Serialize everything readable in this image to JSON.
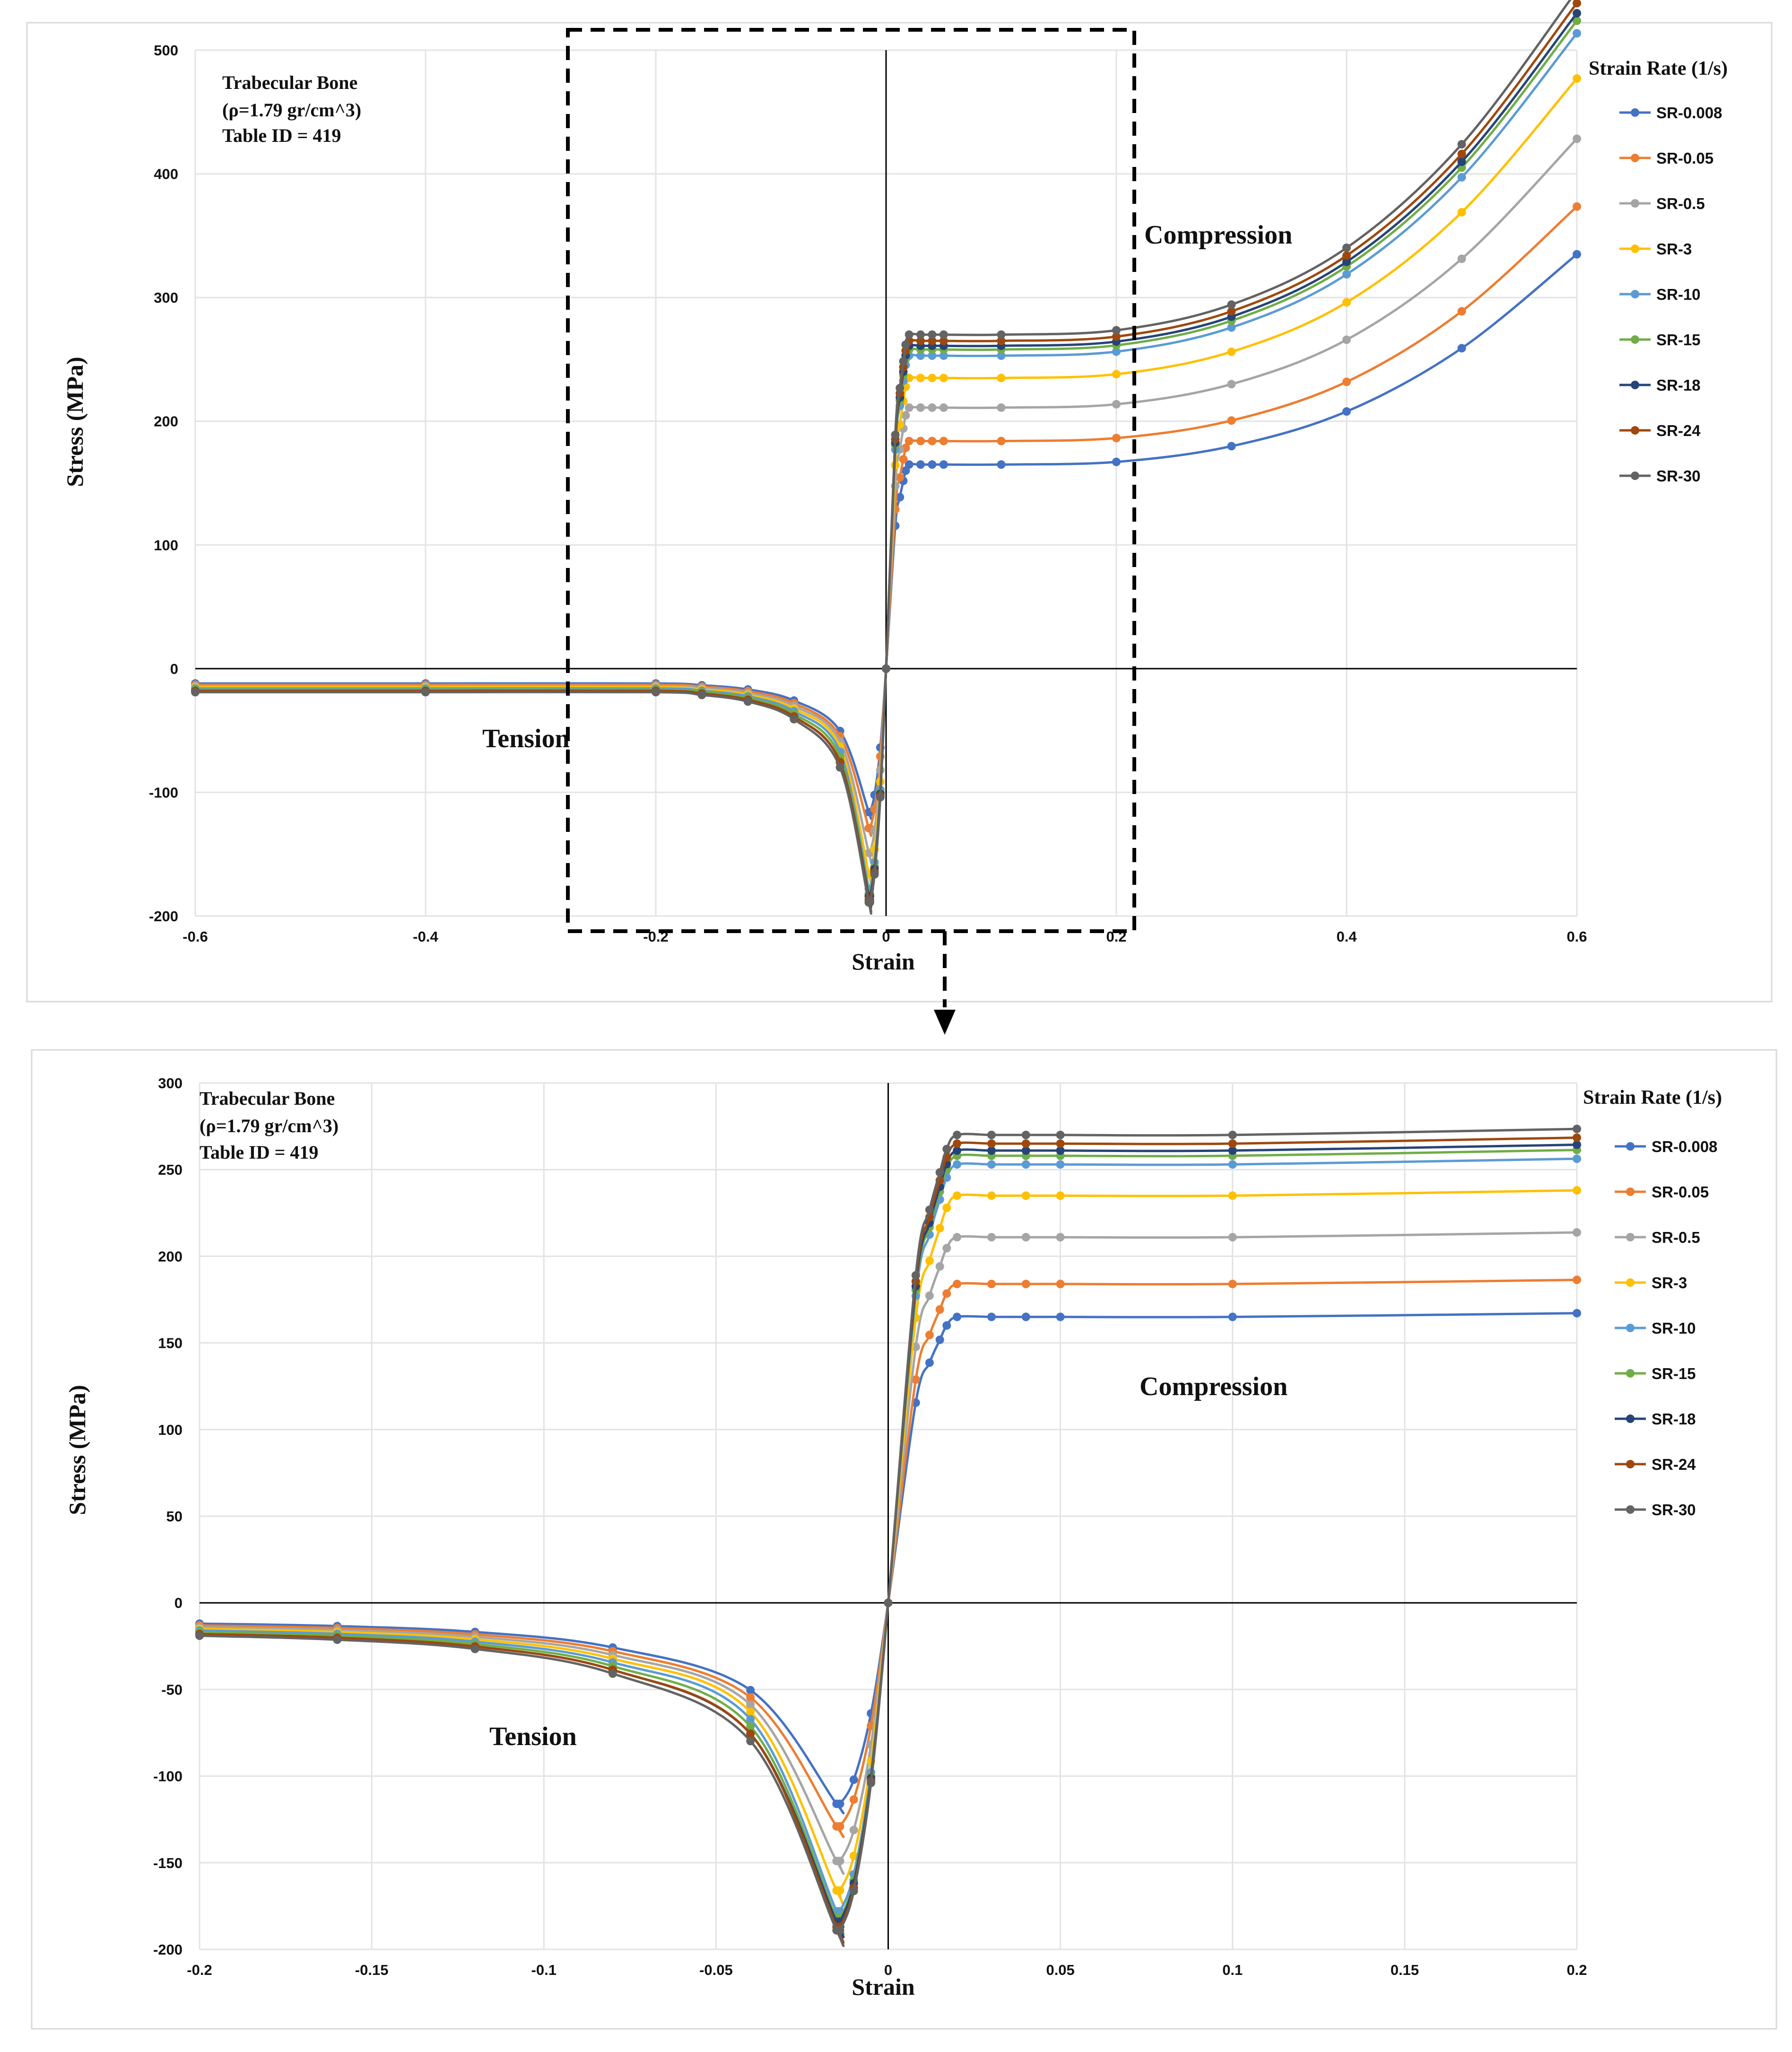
{
  "chart_data": [
    {
      "type": "line",
      "name": "full-range",
      "info": [
        "Trabecular  Bone",
        "(ρ=1.79 gr/cm^3)",
        "Table ID = 419"
      ],
      "xlabel": "Strain",
      "ylabel": "Stress (MPa)",
      "xlim": [
        -0.6,
        0.6
      ],
      "ylim": [
        -200,
        500
      ],
      "xticks": [
        -0.6,
        -0.4,
        -0.2,
        0,
        0.2,
        0.4,
        0.6
      ],
      "xtick_labels": [
        "-0.6",
        "-0.4",
        "-0.2",
        "0",
        "0.2",
        "0.4",
        "0.6"
      ],
      "yticks": [
        -200,
        -100,
        0,
        100,
        200,
        300,
        400,
        500
      ],
      "ytick_labels": [
        "-200",
        "-100",
        "0",
        "100",
        "200",
        "300",
        "400",
        "500"
      ],
      "annotations": [
        {
          "text": "Compression",
          "x": 0.23,
          "y": 350
        },
        {
          "text": "Tension",
          "x": -0.35,
          "y": -60
        }
      ],
      "legend_title": "Strain Rate (1/s)",
      "grid": true
    },
    {
      "type": "line",
      "name": "zoom",
      "info": [
        "Trabecular  Bone",
        "(ρ=1.79 gr/cm^3)",
        "Table ID = 419"
      ],
      "xlabel": "Strain",
      "ylabel": "Stress (MPa)",
      "xlim": [
        -0.2,
        0.2
      ],
      "ylim": [
        -200,
        300
      ],
      "xticks": [
        -0.2,
        -0.15,
        -0.1,
        -0.05,
        0,
        0.05,
        0.1,
        0.15,
        0.2
      ],
      "xtick_labels": [
        "-0.2",
        "-0.15",
        "-0.1",
        "-0.05",
        "0",
        "0.05",
        "0.1",
        "0.15",
        "0.2"
      ],
      "yticks": [
        -200,
        -150,
        -100,
        -50,
        0,
        50,
        100,
        150,
        200,
        250,
        300
      ],
      "ytick_labels": [
        "-200",
        "-150",
        "-100",
        "-50",
        "0",
        "50",
        "100",
        "150",
        "200",
        "250",
        "300"
      ],
      "annotations": [
        {
          "text": "Compression",
          "x": 0.098,
          "y": 120
        },
        {
          "text": "Tension",
          "x": -0.1,
          "y": -80
        }
      ],
      "legend_title": "Strain Rate (1/s)",
      "grid": true
    }
  ],
  "series": [
    {
      "name": "SR-0.008",
      "color": "#4472C4",
      "plateau": 165,
      "tension_min": -116,
      "tension_tail": -12
    },
    {
      "name": "SR-0.05",
      "color": "#ED7D31",
      "plateau": 184,
      "tension_min": -129,
      "tension_tail": -13
    },
    {
      "name": "SR-0.5",
      "color": "#A5A5A5",
      "plateau": 211,
      "tension_min": -149,
      "tension_tail": -14
    },
    {
      "name": "SR-3",
      "color": "#FFC000",
      "plateau": 235,
      "tension_min": -166,
      "tension_tail": -15
    },
    {
      "name": "SR-10",
      "color": "#5B9BD5",
      "plateau": 253,
      "tension_min": -178,
      "tension_tail": -16
    },
    {
      "name": "SR-15",
      "color": "#70AD47",
      "plateau": 258,
      "tension_min": -182,
      "tension_tail": -17
    },
    {
      "name": "SR-18",
      "color": "#264478",
      "plateau": 261,
      "tension_min": -184,
      "tension_tail": -18
    },
    {
      "name": "SR-24",
      "color": "#9E480E",
      "plateau": 265,
      "tension_min": -187,
      "tension_tail": -18
    },
    {
      "name": "SR-30",
      "color": "#636363",
      "plateau": 270,
      "tension_min": -189,
      "tension_tail": -19
    }
  ],
  "compression_shape": {
    "strain": [
      0,
      0.008,
      0.012,
      0.015,
      0.017,
      0.02,
      0.03,
      0.04,
      0.05,
      0.1,
      0.2,
      0.3,
      0.4,
      0.5,
      0.6
    ],
    "fraction": [
      0,
      0.7,
      0.84,
      0.92,
      0.97,
      1.0,
      1.0,
      1.0,
      1.0,
      1.0,
      1.013,
      1.09,
      1.26,
      1.57,
      2.03
    ]
  },
  "tension_shape": {
    "strain": [
      -0.6,
      -0.4,
      -0.2,
      -0.16,
      -0.12,
      -0.08,
      -0.04,
      -0.015,
      -0.014,
      -0.01,
      -0.005,
      0
    ],
    "kind": [
      "tail",
      "tail",
      "tail",
      "mid1",
      "mid2",
      "mid3",
      "mid4",
      "min",
      "min",
      "n10",
      "n05",
      "zero"
    ]
  },
  "tension_ratios": {
    "mid1": 1.12,
    "mid2": 1.4,
    "mid3": 2.15,
    "mid4": 4.2,
    "n10": 0.88,
    "n05": 0.55
  }
}
